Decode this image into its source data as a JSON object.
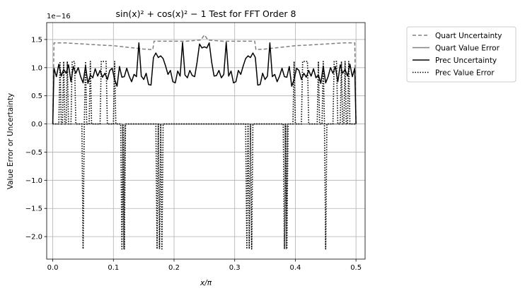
{
  "chart_data": {
    "type": "line",
    "title": "sin(x)² + cos(x)² − 1 Test for FFT Order 8",
    "xlabel": "x/π",
    "ylabel": "Value Error or Uncertainty",
    "y_offset_label": "1e−16",
    "xlim": [
      -0.01,
      0.515
    ],
    "ylim": [
      -2.4,
      1.8
    ],
    "y_scale_factor": 1e-16,
    "grid": true,
    "legend_position": "outside-right-top",
    "x_ticks": [
      0.0,
      0.1,
      0.2,
      0.3,
      0.4,
      0.5
    ],
    "x_tick_labels": [
      "0.0",
      "0.1",
      "0.2",
      "0.3",
      "0.4",
      "0.5"
    ],
    "y_ticks": [
      1.5,
      1.0,
      0.5,
      0.0,
      -0.5,
      -1.0,
      -1.5,
      -2.0
    ],
    "y_tick_labels": [
      "1.5",
      "1.0",
      "0.5",
      "0.0",
      "−0.5",
      "−1.0",
      "−1.5",
      "−2.0"
    ],
    "series": [
      {
        "name": "Quart Uncertainty",
        "style": "dashed",
        "color": "#808080",
        "points": [
          [
            0.0,
            0.0
          ],
          [
            0.002,
            1.44
          ],
          [
            0.02,
            1.44
          ],
          [
            0.05,
            1.42
          ],
          [
            0.08,
            1.4
          ],
          [
            0.1,
            1.39
          ],
          [
            0.125,
            1.36
          ],
          [
            0.15,
            1.33
          ],
          [
            0.165,
            1.32
          ],
          [
            0.167,
            1.47
          ],
          [
            0.22,
            1.47
          ],
          [
            0.244,
            1.49
          ],
          [
            0.25,
            1.58
          ],
          [
            0.256,
            1.49
          ],
          [
            0.28,
            1.47
          ],
          [
            0.333,
            1.47
          ],
          [
            0.335,
            1.32
          ],
          [
            0.35,
            1.33
          ],
          [
            0.375,
            1.36
          ],
          [
            0.4,
            1.39
          ],
          [
            0.42,
            1.4
          ],
          [
            0.45,
            1.42
          ],
          [
            0.48,
            1.44
          ],
          [
            0.498,
            1.44
          ],
          [
            0.5,
            0.0
          ]
        ]
      },
      {
        "name": "Quart Value Error",
        "style": "solid",
        "color": "#808080",
        "points": [
          [
            0.0,
            0.0
          ],
          [
            0.115,
            0.0
          ],
          [
            0.117,
            -2.22
          ],
          [
            0.119,
            0.0
          ],
          [
            0.383,
            0.0
          ],
          [
            0.385,
            -2.22
          ],
          [
            0.387,
            0.0
          ],
          [
            0.5,
            0.0
          ]
        ]
      },
      {
        "name": "Prec Uncertainty",
        "style": "solid",
        "color": "#000000",
        "points": [
          [
            0.0,
            0.0
          ],
          [
            0.002,
            0.99
          ],
          [
            0.006,
            0.84
          ],
          [
            0.01,
            1.06
          ],
          [
            0.014,
            0.85
          ],
          [
            0.018,
            0.97
          ],
          [
            0.022,
            0.9
          ],
          [
            0.026,
            1.05
          ],
          [
            0.03,
            0.75
          ],
          [
            0.034,
            1.02
          ],
          [
            0.038,
            0.9
          ],
          [
            0.042,
            1.0
          ],
          [
            0.046,
            0.84
          ],
          [
            0.05,
            0.73
          ],
          [
            0.054,
            1.03
          ],
          [
            0.058,
            0.72
          ],
          [
            0.062,
            0.87
          ],
          [
            0.066,
            0.82
          ],
          [
            0.07,
            0.98
          ],
          [
            0.074,
            0.85
          ],
          [
            0.078,
            0.95
          ],
          [
            0.082,
            0.83
          ],
          [
            0.086,
            0.9
          ],
          [
            0.09,
            0.79
          ],
          [
            0.094,
            0.95
          ],
          [
            0.098,
            0.99
          ],
          [
            0.102,
            0.79
          ],
          [
            0.106,
            0.67
          ],
          [
            0.11,
            1.02
          ],
          [
            0.114,
            0.83
          ],
          [
            0.118,
            0.84
          ],
          [
            0.122,
            0.99
          ],
          [
            0.126,
            0.85
          ],
          [
            0.13,
            0.75
          ],
          [
            0.134,
            0.88
          ],
          [
            0.138,
            0.84
          ],
          [
            0.142,
            1.44
          ],
          [
            0.146,
            0.85
          ],
          [
            0.15,
            0.79
          ],
          [
            0.154,
            0.9
          ],
          [
            0.158,
            0.7
          ],
          [
            0.162,
            0.69
          ],
          [
            0.166,
            1.18
          ],
          [
            0.17,
            1.26
          ],
          [
            0.174,
            1.18
          ],
          [
            0.178,
            1.21
          ],
          [
            0.182,
            1.16
          ],
          [
            0.186,
            1.03
          ],
          [
            0.19,
            0.88
          ],
          [
            0.194,
            0.95
          ],
          [
            0.198,
            0.75
          ],
          [
            0.202,
            0.73
          ],
          [
            0.206,
            0.94
          ],
          [
            0.21,
            0.85
          ],
          [
            0.214,
            1.45
          ],
          [
            0.218,
            0.87
          ],
          [
            0.222,
            0.82
          ],
          [
            0.226,
            0.95
          ],
          [
            0.23,
            0.86
          ],
          [
            0.234,
            0.84
          ],
          [
            0.238,
            1.1
          ],
          [
            0.242,
            1.42
          ],
          [
            0.246,
            1.35
          ],
          [
            0.25,
            1.37
          ],
          [
            0.254,
            1.35
          ],
          [
            0.258,
            1.44
          ],
          [
            0.262,
            1.1
          ],
          [
            0.266,
            0.85
          ],
          [
            0.27,
            0.86
          ],
          [
            0.274,
            0.95
          ],
          [
            0.278,
            0.82
          ],
          [
            0.282,
            0.88
          ],
          [
            0.286,
            1.45
          ],
          [
            0.29,
            0.85
          ],
          [
            0.294,
            0.94
          ],
          [
            0.298,
            0.73
          ],
          [
            0.302,
            0.75
          ],
          [
            0.306,
            0.95
          ],
          [
            0.31,
            0.88
          ],
          [
            0.314,
            1.03
          ],
          [
            0.318,
            1.16
          ],
          [
            0.322,
            1.21
          ],
          [
            0.326,
            1.18
          ],
          [
            0.33,
            1.26
          ],
          [
            0.334,
            1.18
          ],
          [
            0.338,
            0.69
          ],
          [
            0.342,
            0.7
          ],
          [
            0.346,
            0.9
          ],
          [
            0.35,
            0.79
          ],
          [
            0.354,
            0.85
          ],
          [
            0.358,
            1.44
          ],
          [
            0.362,
            0.84
          ],
          [
            0.366,
            0.88
          ],
          [
            0.37,
            0.75
          ],
          [
            0.374,
            0.85
          ],
          [
            0.378,
            0.99
          ],
          [
            0.382,
            0.84
          ],
          [
            0.386,
            0.83
          ],
          [
            0.39,
            1.02
          ],
          [
            0.394,
            0.67
          ],
          [
            0.398,
            0.79
          ],
          [
            0.402,
            0.99
          ],
          [
            0.406,
            0.95
          ],
          [
            0.41,
            0.79
          ],
          [
            0.414,
            0.9
          ],
          [
            0.418,
            0.83
          ],
          [
            0.422,
            0.95
          ],
          [
            0.426,
            0.85
          ],
          [
            0.43,
            0.98
          ],
          [
            0.434,
            0.82
          ],
          [
            0.438,
            0.87
          ],
          [
            0.442,
            0.72
          ],
          [
            0.446,
            1.03
          ],
          [
            0.45,
            0.73
          ],
          [
            0.454,
            0.84
          ],
          [
            0.458,
            1.0
          ],
          [
            0.462,
            0.9
          ],
          [
            0.466,
            1.02
          ],
          [
            0.47,
            0.75
          ],
          [
            0.474,
            1.05
          ],
          [
            0.478,
            0.9
          ],
          [
            0.482,
            0.97
          ],
          [
            0.486,
            0.85
          ],
          [
            0.49,
            1.06
          ],
          [
            0.494,
            0.84
          ],
          [
            0.498,
            0.99
          ],
          [
            0.5,
            0.0
          ]
        ]
      },
      {
        "name": "Prec Value Error",
        "style": "dotted",
        "color": "#000000",
        "points": [
          [
            0.0,
            0.0
          ],
          [
            0.01,
            0.0
          ],
          [
            0.012,
            1.11
          ],
          [
            0.014,
            0.0
          ],
          [
            0.016,
            0.0
          ],
          [
            0.018,
            1.11
          ],
          [
            0.02,
            0.0
          ],
          [
            0.022,
            0.0
          ],
          [
            0.024,
            1.11
          ],
          [
            0.026,
            0.0
          ],
          [
            0.03,
            0.0
          ],
          [
            0.032,
            1.11
          ],
          [
            0.036,
            1.11
          ],
          [
            0.038,
            0.0
          ],
          [
            0.046,
            0.0
          ],
          [
            0.048,
            0.0
          ],
          [
            0.05,
            -2.22
          ],
          [
            0.052,
            0.0
          ],
          [
            0.054,
            1.11
          ],
          [
            0.056,
            0.0
          ],
          [
            0.06,
            0.0
          ],
          [
            0.062,
            1.11
          ],
          [
            0.064,
            0.0
          ],
          [
            0.078,
            0.0
          ],
          [
            0.08,
            1.11
          ],
          [
            0.088,
            1.11
          ],
          [
            0.09,
            0.0
          ],
          [
            0.1,
            0.0
          ],
          [
            0.102,
            1.11
          ],
          [
            0.104,
            0.0
          ],
          [
            0.112,
            0.0
          ],
          [
            0.114,
            -2.22
          ],
          [
            0.116,
            0.0
          ],
          [
            0.118,
            -2.22
          ],
          [
            0.12,
            0.0
          ],
          [
            0.17,
            0.0
          ],
          [
            0.172,
            -2.22
          ],
          [
            0.174,
            0.0
          ],
          [
            0.176,
            -2.22
          ],
          [
            0.178,
            0.0
          ],
          [
            0.18,
            -2.22
          ],
          [
            0.182,
            0.0
          ],
          [
            0.318,
            0.0
          ],
          [
            0.32,
            -2.22
          ],
          [
            0.322,
            0.0
          ],
          [
            0.324,
            -2.22
          ],
          [
            0.326,
            0.0
          ],
          [
            0.328,
            -2.22
          ],
          [
            0.33,
            0.0
          ],
          [
            0.38,
            0.0
          ],
          [
            0.382,
            -2.22
          ],
          [
            0.384,
            0.0
          ],
          [
            0.386,
            -2.22
          ],
          [
            0.388,
            0.0
          ],
          [
            0.396,
            0.0
          ],
          [
            0.398,
            1.11
          ],
          [
            0.4,
            0.0
          ],
          [
            0.41,
            0.0
          ],
          [
            0.412,
            1.11
          ],
          [
            0.42,
            1.11
          ],
          [
            0.422,
            0.0
          ],
          [
            0.436,
            0.0
          ],
          [
            0.438,
            1.11
          ],
          [
            0.44,
            0.0
          ],
          [
            0.444,
            0.0
          ],
          [
            0.446,
            1.11
          ],
          [
            0.448,
            0.0
          ],
          [
            0.45,
            -2.22
          ],
          [
            0.452,
            0.0
          ],
          [
            0.454,
            0.0
          ],
          [
            0.462,
            0.0
          ],
          [
            0.464,
            1.11
          ],
          [
            0.468,
            1.11
          ],
          [
            0.47,
            0.0
          ],
          [
            0.474,
            0.0
          ],
          [
            0.476,
            1.11
          ],
          [
            0.478,
            0.0
          ],
          [
            0.48,
            0.0
          ],
          [
            0.482,
            1.11
          ],
          [
            0.484,
            0.0
          ],
          [
            0.486,
            0.0
          ],
          [
            0.488,
            1.11
          ],
          [
            0.49,
            0.0
          ],
          [
            0.5,
            0.0
          ]
        ]
      }
    ]
  }
}
